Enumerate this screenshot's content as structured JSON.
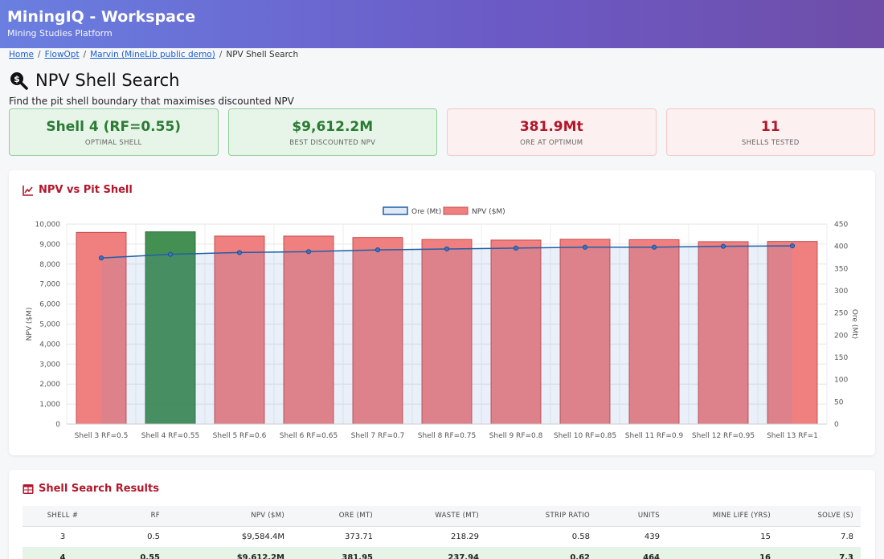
{
  "header": {
    "title": "MiningIQ - Workspace",
    "subtitle": "Mining Studies Platform"
  },
  "breadcrumb": {
    "items": [
      "Home",
      "FlowOpt",
      "Marvin (MineLib public demo)"
    ],
    "current": "NPV Shell Search"
  },
  "page": {
    "title": "NPV Shell Search",
    "description": "Find the pit shell boundary that maximises discounted NPV"
  },
  "kpis": [
    {
      "value": "Shell 4 (RF=0.55)",
      "label": "OPTIMAL SHELL"
    },
    {
      "value": "$9,612.2M",
      "label": "BEST DISCOUNTED NPV"
    },
    {
      "value": "381.9Mt",
      "label": "ORE AT OPTIMUM"
    },
    {
      "value": "11",
      "label": "SHELLS TESTED"
    }
  ],
  "chart": {
    "title": "NPV vs Pit Shell"
  },
  "chart_data": {
    "type": "bar",
    "categories": [
      "Shell 3 RF=0.5",
      "Shell 4 RF=0.55",
      "Shell 5 RF=0.6",
      "Shell 6 RF=0.65",
      "Shell 7 RF=0.7",
      "Shell 8 RF=0.75",
      "Shell 9 RF=0.8",
      "Shell 10 RF=0.85",
      "Shell 11 RF=0.9",
      "Shell 12 RF=0.95",
      "Shell 13 RF=1"
    ],
    "series": [
      {
        "name": "NPV ($M)",
        "type": "bar",
        "axis": "left",
        "values": [
          9584.4,
          9612.2,
          9400,
          9400,
          9330,
          9230,
          9200,
          9240,
          9220,
          9120,
          9130
        ]
      },
      {
        "name": "Ore (Mt)",
        "type": "line",
        "axis": "right",
        "values": [
          373.71,
          381.95,
          386,
          388,
          392,
          394,
          396,
          398,
          398,
          400,
          401
        ]
      }
    ],
    "highlight_index": 1,
    "ylabel": "NPV ($M)",
    "y2label": "Ore (Mt)",
    "ylim": [
      0,
      10000
    ],
    "y2lim": [
      0,
      450
    ],
    "yticks": [
      "0",
      "1,000",
      "2,000",
      "3,000",
      "4,000",
      "5,000",
      "6,000",
      "7,000",
      "8,000",
      "9,000",
      "10,000"
    ],
    "y2ticks": [
      "0",
      "50",
      "100",
      "150",
      "200",
      "250",
      "300",
      "350",
      "400",
      "450"
    ],
    "legend_position": "top",
    "grid": true,
    "colors": {
      "bar": "#f08080",
      "bar_highlight": "#3a8a4a",
      "line": "#1f5fa8"
    }
  },
  "results": {
    "title": "Shell Search Results",
    "columns": [
      "SHELL #",
      "RF",
      "NPV ($M)",
      "ORE (MT)",
      "WASTE (MT)",
      "STRIP RATIO",
      "UNITS",
      "MINE LIFE (YRS)",
      "SOLVE (S)"
    ],
    "rows": [
      [
        "3",
        "0.5",
        "$9,584.4M",
        "373.71",
        "218.29",
        "0.58",
        "439",
        "15",
        "7.8"
      ],
      [
        "4",
        "0.55",
        "$9,612.2M",
        "381.95",
        "237.94",
        "0.62",
        "464",
        "16",
        "7.3"
      ]
    ],
    "optimal_row": 1
  }
}
